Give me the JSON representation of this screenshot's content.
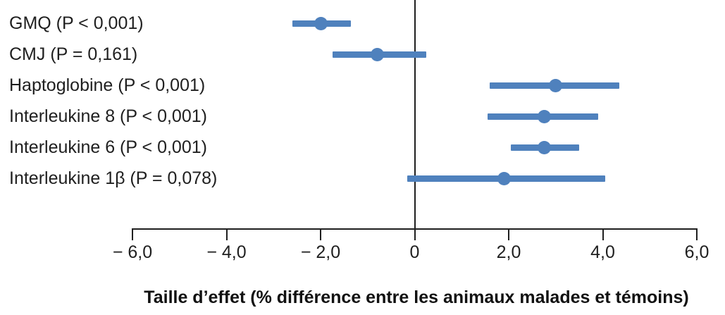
{
  "chart_data": {
    "type": "scatter",
    "subtype": "forest-plot",
    "title": "",
    "xlabel": "Taille d’effet (% différence entre les animaux malades et témoins)",
    "ylabel": "",
    "xlim": [
      -6,
      6
    ],
    "grid": false,
    "zero_reference_line": 0,
    "x_ticks": [
      {
        "value": -6,
        "label": "− 6,0"
      },
      {
        "value": -4,
        "label": "− 4,0"
      },
      {
        "value": -2,
        "label": "− 2,0"
      },
      {
        "value": 0,
        "label": "0"
      },
      {
        "value": 2,
        "label": "2,0"
      },
      {
        "value": 4,
        "label": "4,0"
      },
      {
        "value": 6,
        "label": "6,0"
      }
    ],
    "rows": [
      {
        "label": "GMQ (P < 0,001)",
        "point": -2.0,
        "ci": [
          -2.6,
          -1.35
        ]
      },
      {
        "label": "CMJ (P = 0,161)",
        "point": -0.8,
        "ci": [
          -1.75,
          0.25
        ]
      },
      {
        "label": "Haptoglobine (P < 0,001)",
        "point": 3.0,
        "ci": [
          1.6,
          4.35
        ]
      },
      {
        "label": "Interleukine 8 (P < 0,001)",
        "point": 2.75,
        "ci": [
          1.55,
          3.9
        ]
      },
      {
        "label": "Interleukine 6 (P < 0,001)",
        "point": 2.75,
        "ci": [
          2.05,
          3.5
        ]
      },
      {
        "label": "Interleukine 1β (P = 0,078)",
        "point": 1.9,
        "ci": [
          -0.15,
          4.05
        ]
      }
    ],
    "colors": {
      "marker": "#4f81bd",
      "axis": "#1f1f1f",
      "text": "#1f1f1f"
    }
  }
}
